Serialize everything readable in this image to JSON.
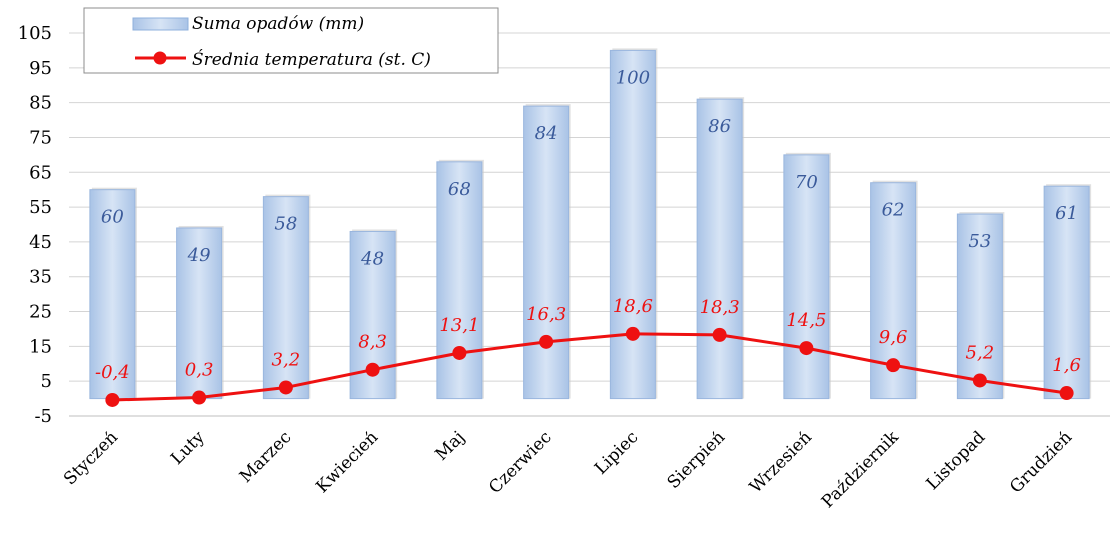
{
  "chart_data": {
    "type": "bar",
    "categories": [
      "Styczeń",
      "Luty",
      "Marzec",
      "Kwiecień",
      "Maj",
      "Czerwiec",
      "Lipiec",
      "Sierpień",
      "Wrzesień",
      "Październik",
      "Listopad",
      "Grudzień"
    ],
    "series": [
      {
        "name": "Suma opadów (mm)",
        "type": "bar",
        "values": [
          60,
          49,
          58,
          48,
          68,
          84,
          100,
          86,
          70,
          62,
          53,
          61
        ],
        "labels": [
          "60",
          "49",
          "58",
          "48",
          "68",
          "84",
          "100",
          "86",
          "70",
          "62",
          "53",
          "61"
        ],
        "color": "#c6d9f1"
      },
      {
        "name": "Średnia temperatura (st. C)",
        "type": "line",
        "values": [
          -0.4,
          0.3,
          3.2,
          8.3,
          13.1,
          16.3,
          18.6,
          18.3,
          14.5,
          9.6,
          5.2,
          1.6
        ],
        "labels": [
          "-0,4",
          "0,3",
          "3,2",
          "8,3",
          "13,1",
          "16,3",
          "18,6",
          "18,3",
          "14,5",
          "9,6",
          "5,2",
          "1,6"
        ],
        "color": "#ee1111"
      }
    ],
    "ylim": [
      -5,
      105
    ],
    "yticks": [
      "-5",
      "5",
      "15",
      "25",
      "35",
      "45",
      "55",
      "65",
      "75",
      "85",
      "95",
      "105"
    ],
    "grid": true,
    "legend": "top-left"
  }
}
